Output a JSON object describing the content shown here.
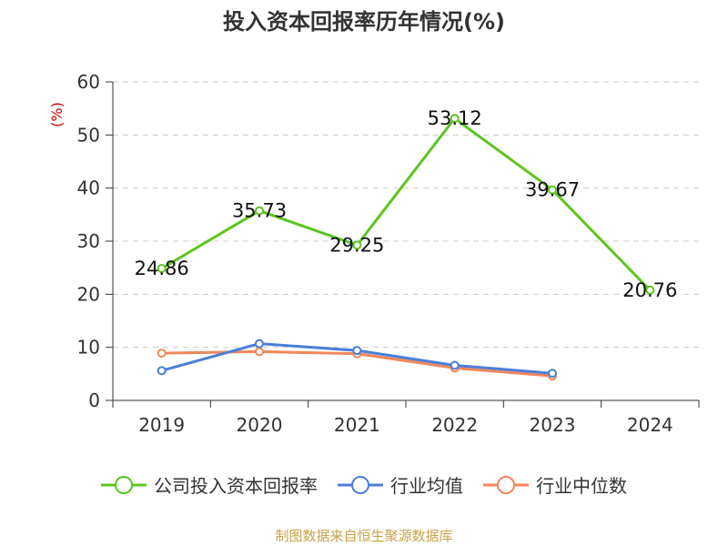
{
  "title": "投入资本回报率历年情况(%)",
  "unit_label": "(%)",
  "source": "制图数据来自恒生聚源数据库",
  "chart_data": {
    "type": "line",
    "categories": [
      "2019",
      "2020",
      "2021",
      "2022",
      "2023",
      "2024"
    ],
    "ylim": [
      0,
      60
    ],
    "yticks": [
      0,
      10,
      20,
      30,
      40,
      50,
      60
    ],
    "grid": true,
    "legend_position": "bottom",
    "series": [
      {
        "name": "公司投入资本回报率",
        "color": "#5cc51f",
        "values": [
          24.86,
          35.73,
          29.25,
          53.12,
          39.67,
          20.76
        ],
        "labels": [
          "24.86",
          "35.73",
          "29.25",
          "53.12",
          "39.67",
          "20.76"
        ]
      },
      {
        "name": "行业均值",
        "color": "#4a7fd8",
        "values": [
          5.6,
          10.7,
          9.4,
          6.6,
          5.1,
          null
        ]
      },
      {
        "name": "行业中位数",
        "color": "#f0875a",
        "values": [
          8.9,
          9.2,
          8.8,
          6.1,
          4.6,
          null
        ]
      }
    ]
  },
  "colors": {
    "unit_label": "#cc0000",
    "source_text": "#c8a24a",
    "grid": "#cccccc",
    "axis": "#333333"
  }
}
